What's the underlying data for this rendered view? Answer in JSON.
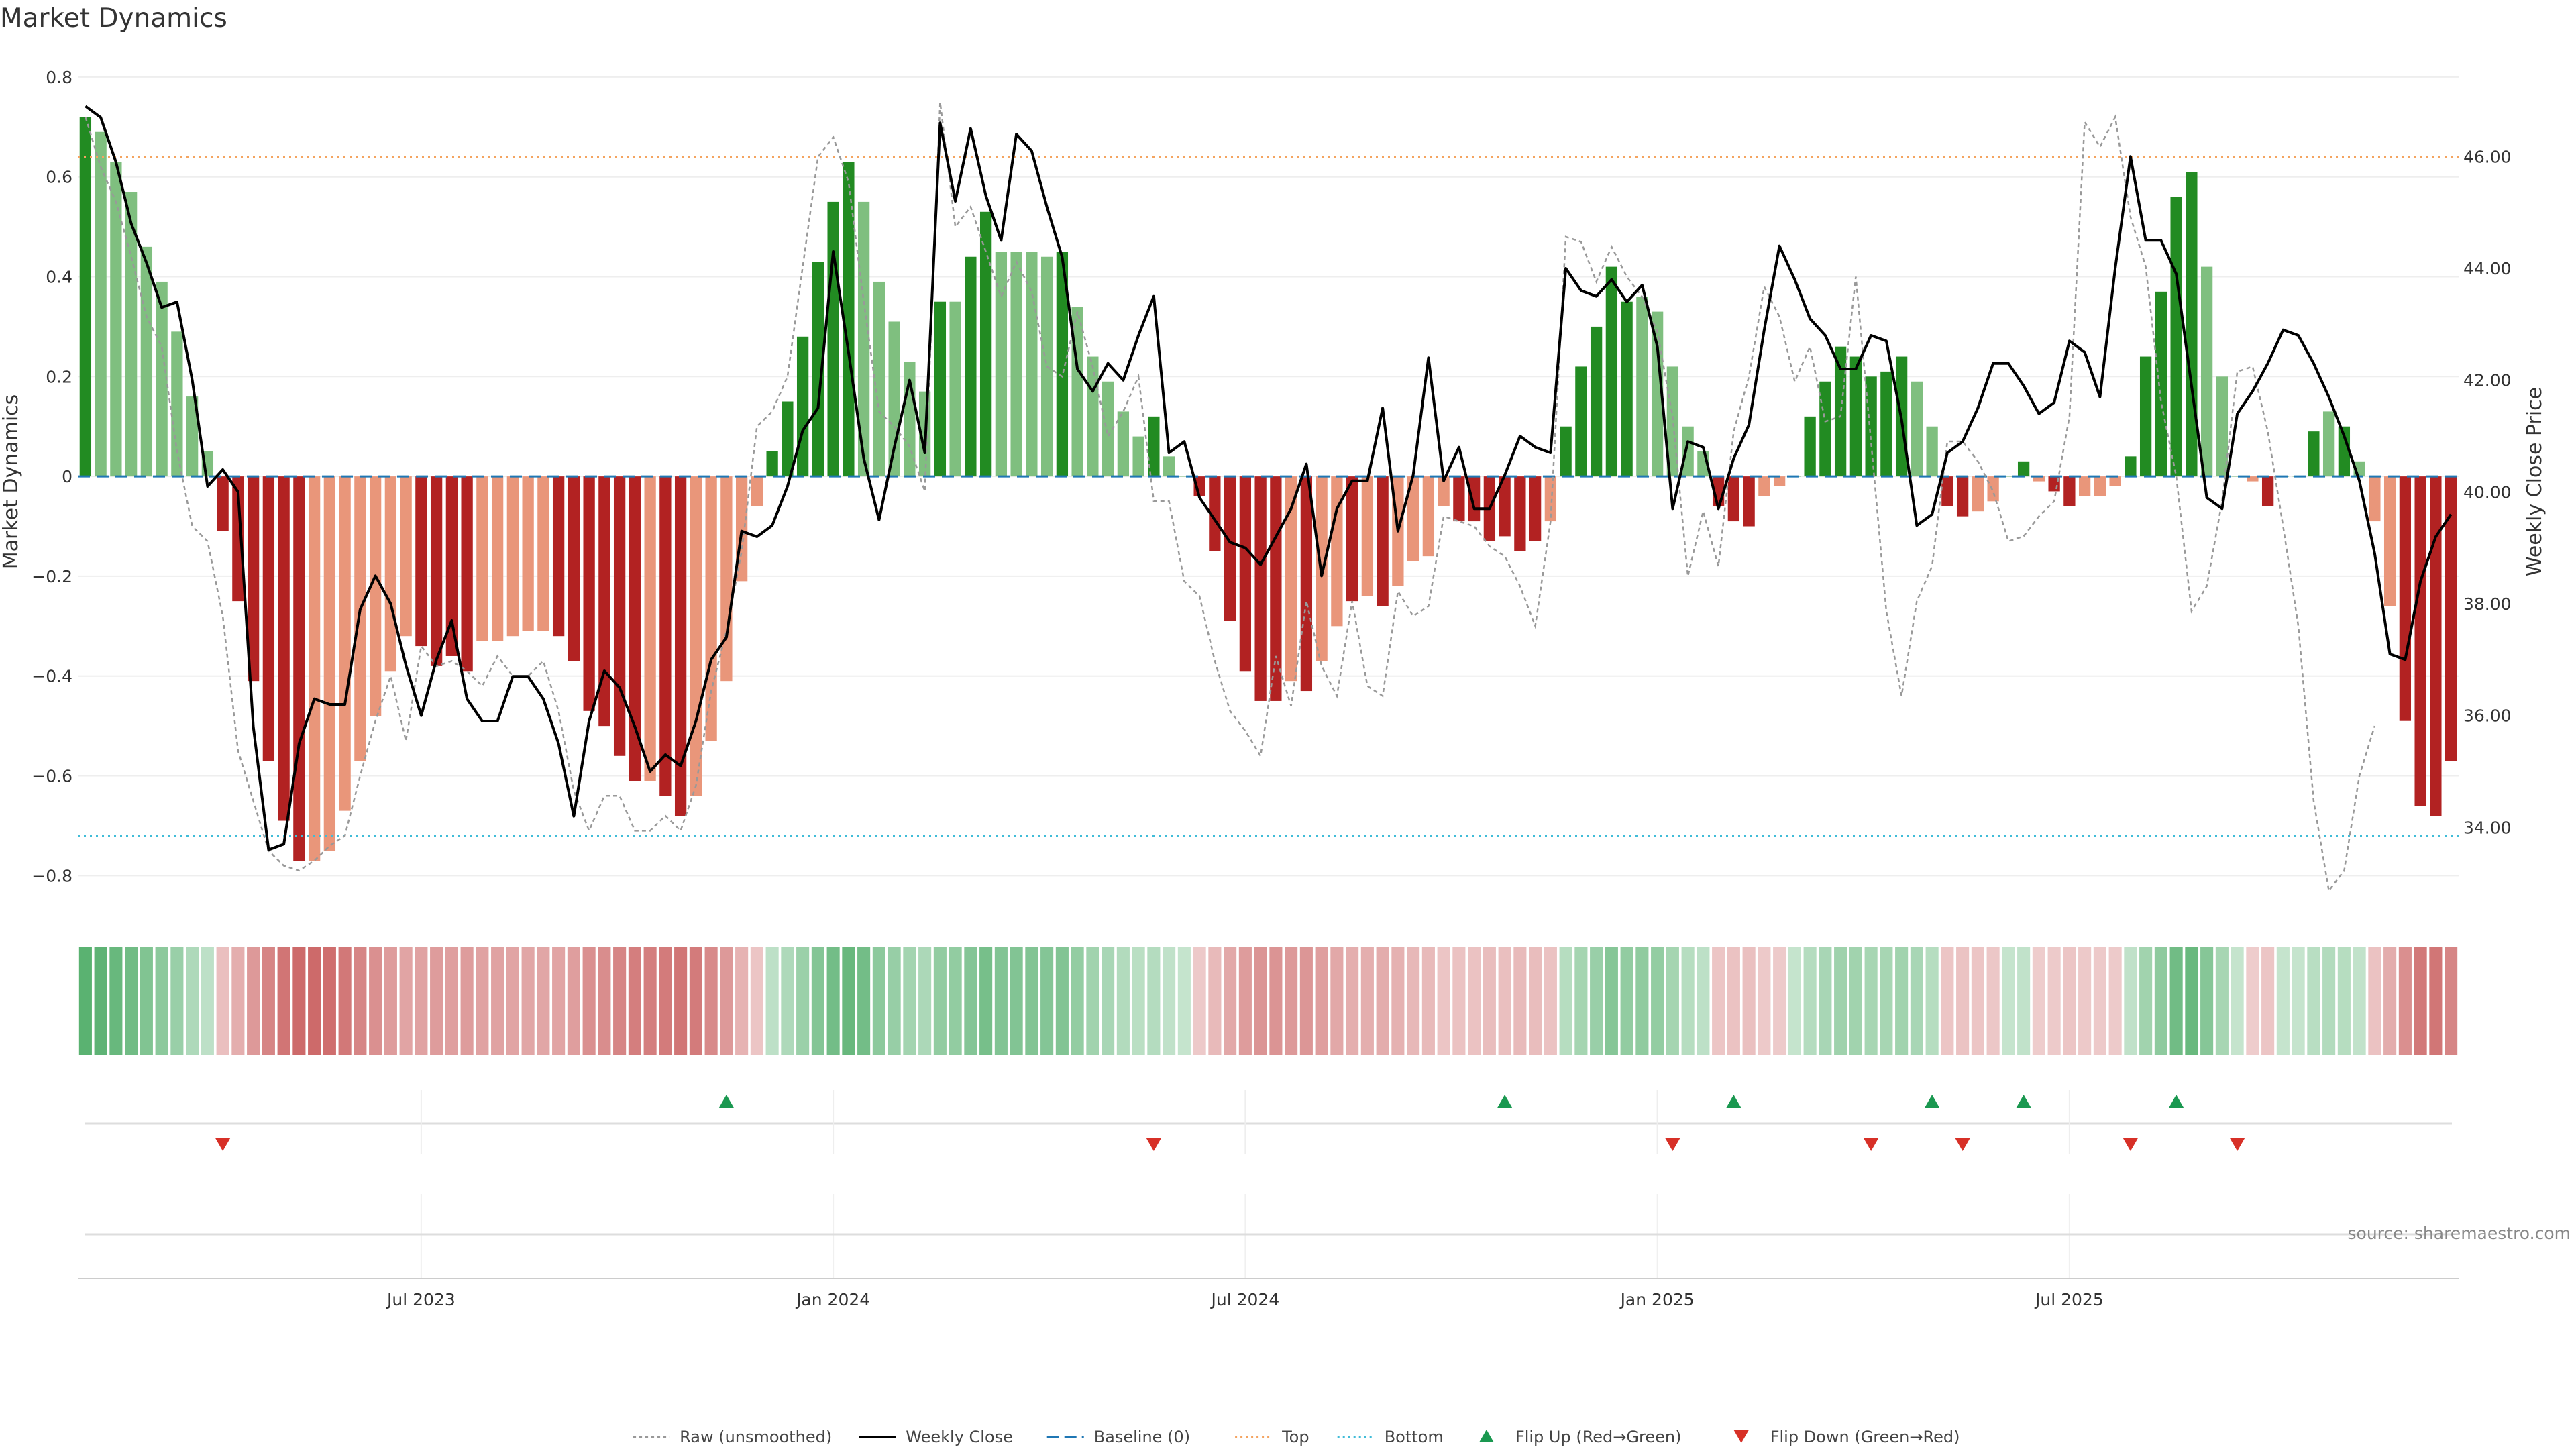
{
  "chart_data": {
    "type": "bar",
    "title": "Market Dynamics",
    "ylabel_left": "Market Dynamics",
    "ylabel_right": "Weekly Close Price",
    "source": "source: sharemaestro.com",
    "left_ylim": [
      -0.86,
      0.82
    ],
    "right_ylim": [
      32.6,
      47.6
    ],
    "left_ticks": [
      "0.8",
      "0.6",
      "0.4",
      "0.2",
      "0",
      "−0.2",
      "−0.4",
      "−0.6",
      "−0.8"
    ],
    "left_tick_values": [
      0.8,
      0.6,
      0.4,
      0.2,
      0,
      -0.2,
      -0.4,
      -0.6,
      -0.8
    ],
    "right_ticks": [
      "46.00",
      "44.00",
      "42.00",
      "40.00",
      "38.00",
      "36.00",
      "34.00"
    ],
    "right_tick_values": [
      46,
      44,
      42,
      40,
      38,
      36,
      34
    ],
    "x_ticks": [
      "Jul 2023",
      "Jan 2024",
      "Jul 2024",
      "Jan 2025",
      "Jul 2025"
    ],
    "x_tick_week_index": [
      22,
      49,
      76,
      103,
      130
    ],
    "start_date": "2023-01-27",
    "top_level": 0.64,
    "bottom_level": -0.72,
    "baseline": 0,
    "colors": {
      "strong_green": "#228b22",
      "light_green": "#7fbf7f",
      "strong_red": "#b22222",
      "light_red": "#e9967a",
      "close_line": "#000000",
      "raw_line": "#999999",
      "baseline": "#1f77b4",
      "top": "#f4a460",
      "bottom": "#40bcd8",
      "flip_up": "#1a9850",
      "flip_down": "#d73027"
    },
    "series": [
      {
        "name": "Market Dynamics (bars)",
        "values": [
          0.72,
          0.69,
          0.63,
          0.57,
          0.46,
          0.39,
          0.29,
          0.16,
          0.05,
          -0.11,
          -0.25,
          -0.41,
          -0.57,
          -0.69,
          -0.77,
          -0.77,
          -0.75,
          -0.67,
          -0.57,
          -0.48,
          -0.39,
          -0.32,
          -0.34,
          -0.38,
          -0.36,
          -0.39,
          -0.33,
          -0.33,
          -0.32,
          -0.31,
          -0.31,
          -0.32,
          -0.37,
          -0.47,
          -0.5,
          -0.56,
          -0.61,
          -0.61,
          -0.64,
          -0.68,
          -0.64,
          -0.53,
          -0.41,
          -0.21,
          -0.06,
          0.05,
          0.15,
          0.28,
          0.43,
          0.55,
          0.63,
          0.55,
          0.39,
          0.31,
          0.23,
          0.17,
          0.35,
          0.35,
          0.44,
          0.53,
          0.45,
          0.45,
          0.45,
          0.44,
          0.45,
          0.34,
          0.24,
          0.19,
          0.13,
          0.08,
          0.12,
          0.04,
          0.0,
          -0.04,
          -0.15,
          -0.29,
          -0.39,
          -0.45,
          -0.45,
          -0.41,
          -0.43,
          -0.37,
          -0.3,
          -0.25,
          -0.24,
          -0.26,
          -0.22,
          -0.17,
          -0.16,
          -0.06,
          -0.09,
          -0.09,
          -0.13,
          -0.12,
          -0.15,
          -0.13,
          -0.09,
          0.1,
          0.22,
          0.3,
          0.42,
          0.35,
          0.36,
          0.33,
          0.22,
          0.1,
          0.05,
          -0.06,
          -0.09,
          -0.1,
          -0.04,
          -0.02,
          0.0,
          0.12,
          0.19,
          0.26,
          0.24,
          0.2,
          0.21,
          0.24,
          0.19,
          0.1,
          -0.06,
          -0.08,
          -0.07,
          -0.05,
          0.0,
          0.03,
          -0.01,
          -0.03,
          -0.06,
          -0.04,
          -0.04,
          -0.02,
          0.04,
          0.24,
          0.37,
          0.56,
          0.61,
          0.42,
          0.2,
          0.0,
          -0.01,
          -0.06,
          0.0,
          0.0,
          0.09,
          0.13,
          0.1,
          0.03,
          -0.09,
          -0.26,
          -0.49,
          -0.66,
          -0.68,
          -0.57
        ],
        "intensity": [
          "s",
          "l",
          "l",
          "l",
          "l",
          "l",
          "l",
          "l",
          "l",
          "s",
          "s",
          "s",
          "s",
          "s",
          "s",
          "l",
          "l",
          "l",
          "l",
          "l",
          "l",
          "l",
          "s",
          "s",
          "s",
          "s",
          "l",
          "l",
          "l",
          "l",
          "l",
          "s",
          "s",
          "s",
          "s",
          "s",
          "s",
          "l",
          "s",
          "s",
          "l",
          "l",
          "l",
          "l",
          "l",
          "s",
          "s",
          "s",
          "s",
          "s",
          "s",
          "l",
          "l",
          "l",
          "l",
          "l",
          "s",
          "l",
          "s",
          "s",
          "l",
          "l",
          "l",
          "l",
          "s",
          "l",
          "l",
          "l",
          "l",
          "l",
          "s",
          "l",
          "l",
          "s",
          "s",
          "s",
          "s",
          "s",
          "s",
          "l",
          "s",
          "l",
          "l",
          "s",
          "l",
          "s",
          "l",
          "l",
          "l",
          "l",
          "s",
          "s",
          "s",
          "s",
          "s",
          "s",
          "l",
          "s",
          "s",
          "s",
          "s",
          "s",
          "l",
          "l",
          "l",
          "l",
          "l",
          "s",
          "s",
          "s",
          "l",
          "l",
          "l",
          "s",
          "s",
          "s",
          "s",
          "s",
          "s",
          "s",
          "l",
          "l",
          "s",
          "s",
          "l",
          "l",
          "l",
          "s",
          "l",
          "s",
          "s",
          "l",
          "l",
          "l",
          "s",
          "s",
          "s",
          "s",
          "s",
          "l",
          "l",
          "l",
          "l",
          "s",
          "l",
          "l",
          "s",
          "l",
          "s",
          "l",
          "l",
          "l",
          "s",
          "s",
          "s",
          "s",
          "s",
          "l"
        ]
      },
      {
        "name": "Weekly Close",
        "values": [
          46.9,
          46.7,
          45.9,
          44.8,
          44.1,
          43.3,
          43.4,
          42.0,
          40.1,
          40.4,
          40.0,
          35.8,
          33.6,
          33.7,
          35.5,
          36.3,
          36.2,
          36.2,
          37.9,
          38.5,
          38.0,
          36.9,
          36.0,
          37.0,
          37.7,
          36.3,
          35.9,
          35.9,
          36.7,
          36.7,
          36.3,
          35.5,
          34.2,
          35.9,
          36.8,
          36.5,
          35.8,
          35.0,
          35.3,
          35.1,
          35.9,
          37.0,
          37.4,
          39.3,
          39.2,
          39.4,
          40.1,
          41.1,
          41.5,
          44.3,
          42.5,
          40.6,
          39.5,
          40.8,
          42.0,
          40.7,
          46.6,
          45.2,
          46.5,
          45.3,
          44.5,
          46.4,
          46.1,
          45.1,
          44.2,
          42.2,
          41.8,
          42.3,
          42.0,
          42.8,
          43.5,
          40.7,
          40.9,
          39.9,
          39.5,
          39.1,
          39.0,
          38.7,
          39.2,
          39.7,
          40.5,
          38.5,
          39.7,
          40.2,
          40.2,
          41.5,
          39.3,
          40.3,
          42.4,
          40.2,
          40.8,
          39.7,
          39.7,
          40.3,
          41.0,
          40.8,
          40.7,
          44.0,
          43.6,
          43.5,
          43.8,
          43.4,
          43.7,
          42.6,
          39.7,
          40.9,
          40.8,
          39.7,
          40.6,
          41.2,
          42.9,
          44.4,
          43.8,
          43.1,
          42.8,
          42.2,
          42.2,
          42.8,
          42.7,
          41.3,
          39.4,
          39.6,
          40.7,
          40.9,
          41.5,
          42.3,
          42.3,
          41.9,
          41.4,
          41.6,
          42.7,
          42.5,
          41.7,
          44.0,
          46.0,
          44.5,
          44.5,
          43.9,
          41.9,
          39.9,
          39.7,
          41.4,
          41.8,
          42.3,
          42.9,
          42.8,
          42.3,
          41.7,
          41.0,
          40.2,
          38.9,
          37.1,
          37.0,
          38.4,
          39.2,
          39.6
        ]
      },
      {
        "name": "Raw (unsmoothed)",
        "values": [
          0.72,
          0.62,
          0.55,
          0.44,
          0.32,
          0.26,
          0.05,
          -0.1,
          -0.13,
          -0.28,
          -0.55,
          -0.65,
          -0.75,
          -0.78,
          -0.79,
          -0.77,
          -0.74,
          -0.72,
          -0.6,
          -0.49,
          -0.4,
          -0.53,
          -0.34,
          -0.38,
          -0.37,
          -0.39,
          -0.42,
          -0.36,
          -0.4,
          -0.4,
          -0.37,
          -0.47,
          -0.63,
          -0.71,
          -0.64,
          -0.64,
          -0.71,
          -0.71,
          -0.68,
          -0.71,
          -0.62,
          -0.43,
          -0.31,
          -0.15,
          0.1,
          0.13,
          0.2,
          0.42,
          0.64,
          0.68,
          0.59,
          0.35,
          0.13,
          0.1,
          0.06,
          -0.03,
          0.75,
          0.5,
          0.54,
          0.45,
          0.36,
          0.43,
          0.37,
          0.22,
          0.2,
          0.33,
          0.22,
          0.08,
          0.13,
          0.2,
          -0.05,
          -0.05,
          -0.21,
          -0.24,
          -0.37,
          -0.47,
          -0.51,
          -0.56,
          -0.36,
          -0.46,
          -0.25,
          -0.38,
          -0.44,
          -0.25,
          -0.42,
          -0.44,
          -0.23,
          -0.28,
          -0.26,
          -0.08,
          -0.09,
          -0.1,
          -0.14,
          -0.16,
          -0.22,
          -0.3,
          -0.09,
          0.48,
          0.47,
          0.39,
          0.46,
          0.4,
          0.36,
          0.29,
          0.12,
          -0.2,
          -0.07,
          -0.18,
          0.09,
          0.2,
          0.38,
          0.32,
          0.19,
          0.26,
          0.11,
          0.12,
          0.4,
          0.07,
          -0.27,
          -0.44,
          -0.25,
          -0.18,
          0.07,
          0.07,
          0.03,
          -0.03,
          -0.13,
          -0.12,
          -0.08,
          -0.05,
          0.12,
          0.71,
          0.66,
          0.72,
          0.52,
          0.42,
          0.15,
          0.0,
          -0.27,
          -0.22,
          -0.05,
          0.21,
          0.22,
          0.09,
          -0.1,
          -0.3,
          -0.65,
          -0.83,
          -0.79,
          -0.6,
          -0.5
        ]
      }
    ],
    "flip_up_weeks": [
      42,
      93,
      108,
      121,
      127,
      137
    ],
    "flip_down_weeks": [
      9,
      70,
      104,
      117,
      123,
      134,
      141
    ],
    "legend": [
      {
        "label": "Raw (unsmoothed)",
        "icon": "dotted-line-icon"
      },
      {
        "label": "Weekly Close",
        "icon": "solid-line-icon"
      },
      {
        "label": "Baseline (0)",
        "icon": "dashed-line-icon"
      },
      {
        "label": "Top",
        "icon": "dotted-line-icon"
      },
      {
        "label": "Bottom",
        "icon": "dotted-line-icon"
      },
      {
        "label": "Flip Up (Red→Green)",
        "icon": "triangle-up-icon"
      },
      {
        "label": "Flip Down (Green→Red)",
        "icon": "triangle-down-icon"
      }
    ],
    "legend_placement": "bottom-center",
    "grid": true
  }
}
